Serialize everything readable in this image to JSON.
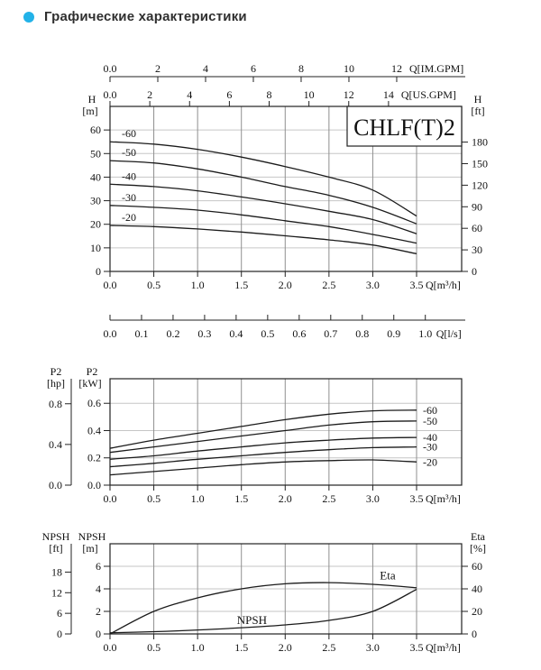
{
  "header": {
    "title": "Графические характеристики",
    "bullet_color": "#22b2e8"
  },
  "chart_data": [
    {
      "id": "head",
      "type": "line",
      "title": "CHLF(T)2",
      "grid": true,
      "x": [
        0,
        0.5,
        1.0,
        1.5,
        2.0,
        2.5,
        3.0,
        3.5
      ],
      "x_axis": {
        "label": "Q[m³/h]",
        "range": [
          0,
          3.5
        ],
        "tick_values": [
          0,
          0.5,
          1.0,
          1.5,
          2.0,
          2.5,
          3.0,
          3.5
        ],
        "tick_labels": [
          "0.0",
          "0.5",
          "1.0",
          "1.5",
          "2.0",
          "2.5",
          "3.0",
          "3.5"
        ]
      },
      "y_axis": {
        "name": "H",
        "unit": "[m]",
        "range": [
          0,
          70
        ],
        "tick_values": [
          0,
          10,
          20,
          30,
          40,
          50,
          60
        ],
        "tick_labels": [
          "0",
          "10",
          "20",
          "30",
          "40",
          "50",
          "60"
        ]
      },
      "y2_axis": {
        "name": "H",
        "unit": "[ft]",
        "per_primary": 3.28084,
        "tick_values": [
          0,
          30,
          60,
          90,
          120,
          150,
          180
        ],
        "tick_labels": [
          "0",
          "30",
          "60",
          "90",
          "120",
          "150",
          "180"
        ]
      },
      "aux_axes": [
        {
          "pos": "float-top",
          "label": "Q[IM.GPM]",
          "primary_per_unit": 0.272766,
          "tick_values": [
            0,
            2,
            4,
            6,
            8,
            10,
            12
          ],
          "tick_labels": [
            "0.0",
            "2",
            "4",
            "6",
            "8",
            "10",
            "12"
          ]
        },
        {
          "pos": "top-border",
          "label": "Q[US.GPM]",
          "primary_per_unit": 0.227125,
          "tick_values": [
            0,
            2,
            4,
            6,
            8,
            10,
            12,
            14
          ],
          "tick_labels": [
            "0.0",
            "2",
            "4",
            "6",
            "8",
            "10",
            "12",
            "14"
          ]
        },
        {
          "pos": "float-bottom",
          "label": "Q[l/s]",
          "primary_per_unit": 3.6,
          "tick_values": [
            0,
            0.1,
            0.2,
            0.3,
            0.4,
            0.5,
            0.6,
            0.7,
            0.8,
            0.9,
            1.0
          ],
          "tick_labels": [
            "0.0",
            "0.1",
            "0.2",
            "0.3",
            "0.4",
            "0.5",
            "0.6",
            "0.7",
            "0.8",
            "0.9",
            "1.0"
          ]
        }
      ],
      "series": [
        {
          "name": "-60",
          "values": [
            55,
            54,
            51.8,
            48.5,
            44.5,
            40,
            34.5,
            23.5
          ]
        },
        {
          "name": "-50",
          "values": [
            47,
            46,
            43.5,
            40,
            36,
            32.3,
            27.2,
            20.2
          ]
        },
        {
          "name": "-40",
          "values": [
            37,
            36,
            34.2,
            31.6,
            28.7,
            25.5,
            22,
            16
          ]
        },
        {
          "name": "-30",
          "values": [
            28,
            27.2,
            26,
            24,
            21.5,
            19,
            15.7,
            12
          ]
        },
        {
          "name": "-20",
          "values": [
            19.5,
            19,
            18,
            16.7,
            15.1,
            13.4,
            11.2,
            7.5
          ]
        }
      ],
      "series_labels": "start"
    },
    {
      "id": "p2",
      "type": "line",
      "grid": true,
      "x": [
        0,
        0.5,
        1.0,
        1.5,
        2.0,
        2.5,
        3.0,
        3.5
      ],
      "x_axis": {
        "label": "Q[m³/h]",
        "range": [
          0,
          3.5
        ],
        "tick_values": [
          0,
          0.5,
          1.0,
          1.5,
          2.0,
          2.5,
          3.0,
          3.5
        ],
        "tick_labels": [
          "0.0",
          "0.5",
          "1.0",
          "1.5",
          "2.0",
          "2.5",
          "3.0",
          "3.5"
        ]
      },
      "y_axis": {
        "name": "P2",
        "unit": "[kW]",
        "range": [
          0,
          0.78
        ],
        "tick_values": [
          0,
          0.2,
          0.4,
          0.6
        ],
        "tick_labels": [
          "0.0",
          "0.2",
          "0.4",
          "0.6"
        ]
      },
      "aux_axes": [
        {
          "pos": "float-left",
          "name": "P2",
          "unit": "[hp]",
          "primary_per_unit": 0.7457,
          "tick_values": [
            0,
            0.4,
            0.8
          ],
          "tick_labels": [
            "0.0",
            "0.4",
            "0.8"
          ]
        }
      ],
      "series": [
        {
          "name": "-60",
          "values": [
            0.27,
            0.33,
            0.38,
            0.43,
            0.48,
            0.52,
            0.545,
            0.55
          ]
        },
        {
          "name": "-50",
          "values": [
            0.24,
            0.28,
            0.32,
            0.36,
            0.4,
            0.44,
            0.465,
            0.47
          ]
        },
        {
          "name": "-40",
          "values": [
            0.19,
            0.215,
            0.25,
            0.28,
            0.31,
            0.33,
            0.345,
            0.35
          ]
        },
        {
          "name": "-30",
          "values": [
            0.135,
            0.16,
            0.19,
            0.215,
            0.24,
            0.26,
            0.275,
            0.28
          ]
        },
        {
          "name": "-20",
          "values": [
            0.075,
            0.1,
            0.125,
            0.15,
            0.17,
            0.18,
            0.185,
            0.17
          ]
        }
      ],
      "series_labels": "end"
    },
    {
      "id": "npsh",
      "type": "line",
      "grid": true,
      "x": [
        0,
        0.5,
        1.0,
        1.5,
        2.0,
        2.5,
        3.0,
        3.5
      ],
      "x_axis": {
        "label": "Q[m³/h]",
        "range": [
          0,
          3.5
        ],
        "tick_values": [
          0,
          0.5,
          1.0,
          1.5,
          2.0,
          2.5,
          3.0,
          3.5
        ],
        "tick_labels": [
          "0.0",
          "0.5",
          "1.0",
          "1.5",
          "2.0",
          "2.5",
          "3.0",
          "3.5"
        ]
      },
      "y_axis": {
        "name": "NPSH",
        "unit": "[m]",
        "range": [
          0,
          8
        ],
        "tick_values": [
          0,
          2,
          4,
          6
        ],
        "tick_labels": [
          "0",
          "2",
          "4",
          "6"
        ]
      },
      "y2_axis": {
        "name": "Eta",
        "unit": "[%]",
        "per_primary": 10,
        "tick_values": [
          0,
          20,
          40,
          60
        ],
        "tick_labels": [
          "0",
          "20",
          "40",
          "60"
        ]
      },
      "aux_axes": [
        {
          "pos": "float-left",
          "name": "NPSH",
          "unit": "[ft]",
          "primary_per_unit": 0.3048,
          "tick_values": [
            0,
            6,
            12,
            18
          ],
          "tick_labels": [
            "0",
            "6",
            "12",
            "18"
          ]
        }
      ],
      "series": [
        {
          "name": "Eta",
          "axis": "y2",
          "values": [
            0,
            20,
            32,
            40,
            44.5,
            45.5,
            44,
            41
          ]
        },
        {
          "name": "NPSH",
          "values": [
            0.1,
            0.2,
            0.35,
            0.55,
            0.8,
            1.2,
            2.0,
            3.95
          ]
        }
      ],
      "annotations": [
        {
          "text": "Eta",
          "qx": 3.17,
          "v": 4.85
        },
        {
          "text": "NPSH",
          "qx": 1.62,
          "v": 0.9
        }
      ]
    }
  ]
}
